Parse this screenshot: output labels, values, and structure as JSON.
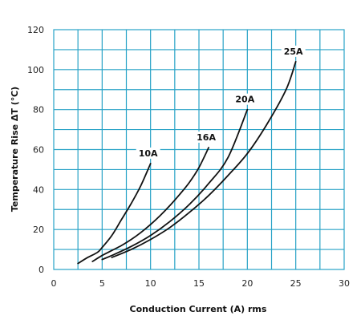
{
  "chart_data": {
    "type": "line",
    "xlabel": "Conduction Current (A) rms",
    "ylabel": "Temperature Rise ΔT (℃)",
    "xlim": [
      0,
      30
    ],
    "ylim": [
      0,
      120
    ],
    "xticks": [
      0,
      5,
      10,
      15,
      20,
      25,
      30
    ],
    "yticks": [
      0,
      20,
      40,
      60,
      80,
      100,
      120
    ],
    "grid": true,
    "colors": {
      "grid": "#29a3c7",
      "line": "#111111",
      "label_bg": "#ffffff"
    },
    "series": [
      {
        "name": "10A",
        "x": [
          2.5,
          3.5,
          4.5,
          5.0,
          6.0,
          7.0,
          8.0,
          9.0,
          10.0
        ],
        "y": [
          3,
          6,
          8.5,
          11,
          17,
          25,
          33,
          42,
          53
        ]
      },
      {
        "name": "16A",
        "x": [
          4.0,
          5.0,
          6.0,
          7.0,
          8.0,
          9.0,
          10.0,
          11.0,
          12.0,
          13.0,
          14.0,
          15.0,
          16.0
        ],
        "y": [
          4,
          7,
          9.5,
          12,
          15,
          18.5,
          22.5,
          27,
          32,
          37.5,
          43.5,
          51,
          61
        ]
      },
      {
        "name": "20A",
        "x": [
          5.0,
          6.0,
          8.0,
          10.0,
          12.0,
          14.0,
          16.0,
          18.0,
          20.0
        ],
        "y": [
          5,
          7,
          11.5,
          17,
          24,
          32.5,
          43,
          56,
          80
        ]
      },
      {
        "name": "25A",
        "x": [
          6.0,
          8.0,
          10.0,
          12.0,
          14.0,
          16.0,
          18.0,
          20.0,
          22.0,
          24.0,
          25.0
        ],
        "y": [
          6,
          10,
          15,
          21,
          28.5,
          37,
          47,
          58,
          72.5,
          90,
          104
        ]
      }
    ]
  }
}
